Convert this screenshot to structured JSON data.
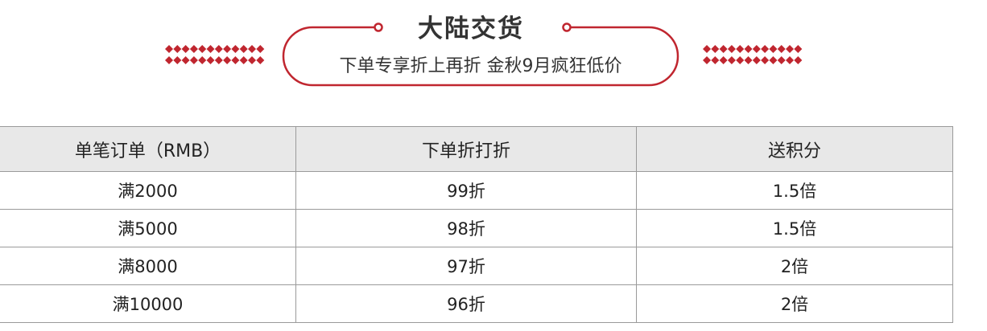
{
  "banner": {
    "title": "大陆交货",
    "subtitle": "下单专享折上再折 金秋9月疯狂低价",
    "accent_color": "#c0262f"
  },
  "table": {
    "headers": [
      "单笔订单（RMB）",
      "下单折打折",
      "送积分"
    ],
    "rows": [
      [
        "满2000",
        "99折",
        "1.5倍"
      ],
      [
        "满5000",
        "98折",
        "1.5倍"
      ],
      [
        "满8000",
        "97折",
        "2倍"
      ],
      [
        "满10000",
        "96折",
        "2倍"
      ]
    ]
  }
}
